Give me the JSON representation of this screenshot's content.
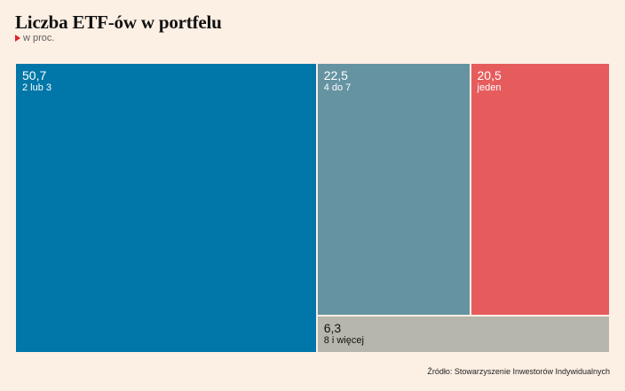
{
  "title": "Liczba ETF-ów w portfelu",
  "subtitle": "w proc.",
  "source": "Źródło: Stowarzyszenie Inwestorów Indywidualnych",
  "colors": {
    "background": "#fcefe4",
    "marker": "#e0242c"
  },
  "chart_data": {
    "type": "treemap",
    "title": "Liczba ETF-ów w portfelu",
    "unit": "w proc.",
    "items": [
      {
        "label": "2 lub 3",
        "value_text": "50,7",
        "value": 50.7,
        "color": "#0077a8",
        "text_color": "#ffffff"
      },
      {
        "label": "4 do 7",
        "value_text": "22,5",
        "value": 22.5,
        "color": "#6593a2",
        "text_color": "#ffffff"
      },
      {
        "label": "jeden",
        "value_text": "20,5",
        "value": 20.5,
        "color": "#e65c5d",
        "text_color": "#ffffff"
      },
      {
        "label": "8 i więcej",
        "value_text": "6,3",
        "value": 6.3,
        "color": "#b7b6ac",
        "text_color": "#111111"
      }
    ]
  }
}
